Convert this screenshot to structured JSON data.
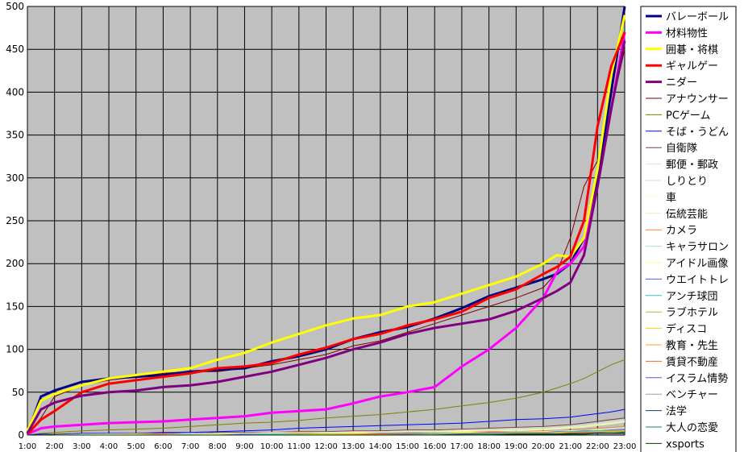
{
  "chart_data": {
    "type": "line",
    "title": "",
    "xlabel": "",
    "ylabel": "",
    "ylim": [
      0,
      500
    ],
    "grid": true,
    "legend_position": "right",
    "plot_background": "#c0c0c0",
    "y_ticks": [
      "0",
      "50",
      "100",
      "150",
      "200",
      "250",
      "300",
      "350",
      "400",
      "450",
      "500"
    ],
    "x_ticks": [
      "1:00",
      "2:00",
      "3:00",
      "4:00",
      "5:00",
      "6:00",
      "7:00",
      "8:00",
      "9:00",
      "10:00",
      "11:00",
      "12:00",
      "13:00",
      "14:00",
      "15:00",
      "16:00",
      "17:00",
      "18:00",
      "19:00",
      "20:00",
      "21:00",
      "22:00",
      "23:00"
    ],
    "x": [
      1,
      1.5,
      2,
      3,
      4,
      5,
      6,
      7,
      8,
      9,
      10,
      11,
      12,
      13,
      14,
      15,
      16,
      17,
      18,
      19,
      20,
      20.5,
      21,
      21.5,
      22,
      22.5,
      23
    ],
    "series": [
      {
        "name": "バレーボール",
        "color": "#000080",
        "width": 3,
        "values": [
          2,
          45,
          52,
          62,
          66,
          68,
          70,
          74,
          76,
          78,
          86,
          92,
          100,
          112,
          120,
          126,
          136,
          148,
          162,
          172,
          182,
          188,
          200,
          230,
          300,
          400,
          500
        ]
      },
      {
        "name": "材料物性",
        "color": "#ff00ff",
        "width": 3,
        "values": [
          1,
          8,
          10,
          12,
          14,
          15,
          16,
          18,
          20,
          22,
          26,
          28,
          30,
          37,
          45,
          50,
          56,
          80,
          100,
          125,
          160,
          190,
          200,
          220,
          290,
          380,
          470
        ]
      },
      {
        "name": "囲碁・将棋",
        "color": "#ffff00",
        "width": 3,
        "values": [
          5,
          40,
          48,
          58,
          66,
          70,
          74,
          78,
          88,
          96,
          108,
          118,
          128,
          136,
          140,
          150,
          155,
          165,
          175,
          185,
          200,
          210,
          208,
          230,
          310,
          420,
          490
        ]
      },
      {
        "name": "ギャルゲー",
        "color": "#ff0000",
        "width": 3,
        "values": [
          1,
          18,
          28,
          50,
          60,
          64,
          68,
          72,
          78,
          80,
          84,
          94,
          102,
          112,
          118,
          128,
          135,
          144,
          160,
          170,
          188,
          196,
          208,
          250,
          360,
          430,
          470
        ]
      },
      {
        "name": "ニダー",
        "color": "#800080",
        "width": 3,
        "values": [
          2,
          30,
          38,
          46,
          50,
          52,
          56,
          58,
          62,
          68,
          74,
          82,
          90,
          100,
          108,
          118,
          125,
          130,
          135,
          145,
          160,
          168,
          178,
          210,
          290,
          380,
          460
        ]
      },
      {
        "name": "アナウンサー",
        "color": "#800000",
        "width": 1,
        "values": [
          1,
          20,
          45,
          58,
          64,
          68,
          72,
          74,
          74,
          78,
          82,
          88,
          94,
          104,
          110,
          120,
          130,
          140,
          150,
          160,
          172,
          190,
          230,
          290,
          320,
          380,
          450
        ]
      },
      {
        "name": "PCゲーム",
        "color": "#808000",
        "width": 1,
        "values": [
          0,
          2,
          3,
          5,
          6,
          7,
          8,
          10,
          12,
          14,
          15,
          17,
          20,
          22,
          24,
          27,
          30,
          34,
          38,
          43,
          50,
          55,
          60,
          66,
          74,
          82,
          88
        ]
      },
      {
        "name": "そば・うどん",
        "color": "#0000ff",
        "width": 1,
        "values": [
          0,
          1,
          1,
          2,
          2,
          2,
          3,
          3,
          4,
          5,
          6,
          8,
          9,
          10,
          11,
          12,
          13,
          14,
          16,
          18,
          19,
          20,
          21,
          23,
          25,
          27,
          30
        ]
      },
      {
        "name": "自衛隊",
        "color": "#804040",
        "width": 1,
        "values": [
          0,
          0,
          1,
          1,
          1,
          2,
          2,
          2,
          3,
          3,
          3,
          4,
          4,
          5,
          5,
          6,
          6,
          7,
          8,
          9,
          10,
          11,
          12,
          14,
          16,
          18,
          20
        ]
      },
      {
        "name": "郵便・郵政",
        "color": "#e0e0e0",
        "width": 1,
        "values": [
          0,
          0,
          0,
          1,
          1,
          1,
          1,
          2,
          2,
          2,
          3,
          3,
          3,
          4,
          4,
          5,
          5,
          6,
          7,
          8,
          9,
          10,
          11,
          12,
          14,
          16,
          18
        ]
      },
      {
        "name": "しりとり",
        "color": "#c0e8c0",
        "width": 1,
        "values": [
          0,
          0,
          0,
          1,
          1,
          1,
          1,
          1,
          2,
          2,
          2,
          3,
          3,
          3,
          4,
          4,
          5,
          5,
          6,
          7,
          8,
          9,
          10,
          11,
          13,
          15,
          17
        ]
      },
      {
        "name": "車",
        "color": "#ffffc0",
        "width": 1,
        "values": [
          0,
          0,
          0,
          0,
          1,
          1,
          1,
          1,
          1,
          2,
          2,
          2,
          3,
          3,
          3,
          4,
          4,
          5,
          5,
          6,
          7,
          8,
          9,
          10,
          12,
          14,
          16
        ]
      },
      {
        "name": "伝統芸能",
        "color": "#f0f0a0",
        "width": 1,
        "values": [
          0,
          0,
          0,
          0,
          0,
          1,
          1,
          1,
          1,
          1,
          2,
          2,
          2,
          3,
          3,
          3,
          4,
          4,
          5,
          5,
          6,
          7,
          8,
          9,
          11,
          13,
          15
        ]
      },
      {
        "name": "カメラ",
        "color": "#ff8040",
        "width": 1,
        "values": [
          0,
          0,
          0,
          0,
          0,
          0,
          1,
          1,
          1,
          1,
          1,
          2,
          2,
          2,
          2,
          3,
          3,
          3,
          4,
          4,
          5,
          5,
          6,
          7,
          8,
          9,
          10
        ]
      },
      {
        "name": "キャラサロン",
        "color": "#a0e0e0",
        "width": 1,
        "values": [
          0,
          0,
          0,
          0,
          0,
          0,
          0,
          1,
          1,
          1,
          1,
          1,
          2,
          2,
          2,
          2,
          3,
          3,
          3,
          4,
          4,
          5,
          5,
          6,
          7,
          8,
          9
        ]
      },
      {
        "name": "アイドル画像",
        "color": "#ffff80",
        "width": 1,
        "values": [
          0,
          0,
          0,
          0,
          0,
          0,
          0,
          0,
          1,
          1,
          1,
          1,
          1,
          2,
          2,
          2,
          2,
          3,
          3,
          3,
          4,
          4,
          5,
          5,
          6,
          7,
          8
        ]
      },
      {
        "name": "ウエイトトレ",
        "color": "#4060ff",
        "width": 1,
        "values": [
          0,
          0,
          0,
          0,
          0,
          0,
          0,
          0,
          0,
          1,
          1,
          1,
          1,
          1,
          2,
          2,
          2,
          2,
          3,
          3,
          3,
          4,
          4,
          5,
          5,
          6,
          7
        ]
      },
      {
        "name": "アンチ球団",
        "color": "#40c0c0",
        "width": 1,
        "values": [
          0,
          0,
          0,
          0,
          0,
          0,
          0,
          0,
          0,
          0,
          1,
          1,
          1,
          1,
          1,
          2,
          2,
          2,
          2,
          3,
          3,
          3,
          4,
          4,
          5,
          5,
          6
        ]
      },
      {
        "name": "ラブホテル",
        "color": "#a0c040",
        "width": 1,
        "values": [
          0,
          0,
          0,
          0,
          0,
          0,
          0,
          0,
          0,
          0,
          0,
          1,
          1,
          1,
          1,
          1,
          2,
          2,
          2,
          2,
          3,
          3,
          3,
          4,
          4,
          5,
          5
        ]
      },
      {
        "name": "ディスコ",
        "color": "#ffd000",
        "width": 1,
        "values": [
          0,
          0,
          0,
          0,
          0,
          0,
          0,
          0,
          0,
          0,
          0,
          0,
          1,
          1,
          1,
          1,
          1,
          2,
          2,
          2,
          2,
          3,
          3,
          3,
          4,
          4,
          5
        ]
      },
      {
        "name": "教育・先生",
        "color": "#ffa020",
        "width": 1,
        "values": [
          0,
          0,
          0,
          0,
          0,
          0,
          0,
          0,
          0,
          0,
          0,
          0,
          0,
          1,
          1,
          1,
          1,
          1,
          2,
          2,
          2,
          2,
          3,
          3,
          3,
          4,
          4
        ]
      },
      {
        "name": "賃貸不動産",
        "color": "#ff6020",
        "width": 1,
        "values": [
          0,
          0,
          0,
          0,
          0,
          0,
          0,
          0,
          0,
          0,
          0,
          0,
          0,
          0,
          1,
          1,
          1,
          1,
          1,
          2,
          2,
          2,
          2,
          3,
          3,
          3,
          4
        ]
      },
      {
        "name": "イスラム情勢",
        "color": "#6060c0",
        "width": 1,
        "values": [
          0,
          0,
          0,
          0,
          0,
          0,
          0,
          0,
          0,
          0,
          0,
          0,
          0,
          0,
          0,
          1,
          1,
          1,
          1,
          1,
          2,
          2,
          2,
          2,
          3,
          3,
          3
        ]
      },
      {
        "name": "ベンチャー",
        "color": "#a0a0a0",
        "width": 1,
        "values": [
          0,
          0,
          0,
          0,
          0,
          0,
          0,
          0,
          0,
          0,
          0,
          0,
          0,
          0,
          0,
          0,
          1,
          1,
          1,
          1,
          1,
          2,
          2,
          2,
          2,
          3,
          3
        ]
      },
      {
        "name": "法学",
        "color": "#004080",
        "width": 1,
        "values": [
          0,
          0,
          0,
          0,
          0,
          0,
          0,
          0,
          0,
          0,
          0,
          0,
          0,
          0,
          0,
          0,
          0,
          1,
          1,
          1,
          1,
          1,
          2,
          2,
          2,
          2,
          3
        ]
      },
      {
        "name": "大人の恋愛",
        "color": "#208060",
        "width": 1,
        "values": [
          0,
          0,
          0,
          0,
          0,
          0,
          0,
          0,
          0,
          0,
          0,
          0,
          0,
          0,
          0,
          0,
          0,
          0,
          1,
          1,
          1,
          1,
          1,
          2,
          2,
          2,
          2
        ]
      },
      {
        "name": "xsports",
        "color": "#004000",
        "width": 1,
        "values": [
          0,
          0,
          0,
          0,
          0,
          0,
          0,
          0,
          0,
          0,
          0,
          0,
          0,
          0,
          0,
          0,
          0,
          0,
          0,
          1,
          1,
          1,
          1,
          1,
          2,
          2,
          2
        ]
      }
    ]
  }
}
